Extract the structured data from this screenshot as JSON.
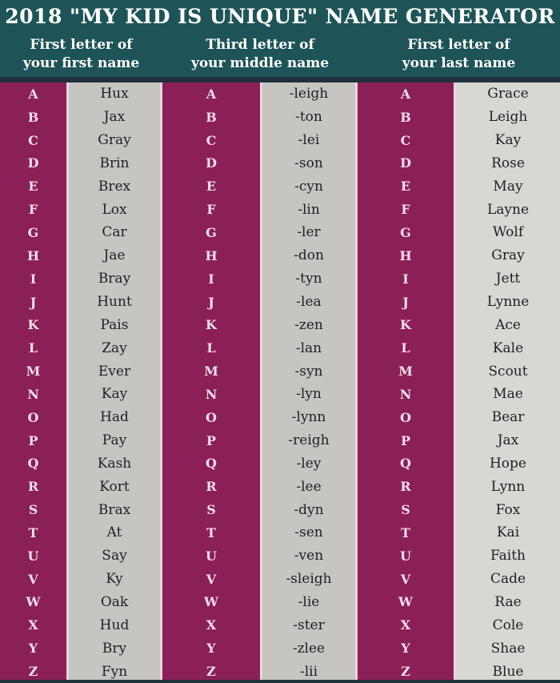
{
  "chart_data": {
    "type": "table",
    "title": "2018 \"MY KID IS UNIQUE\" NAME GENERATOR",
    "letters": [
      "A",
      "B",
      "C",
      "D",
      "E",
      "F",
      "G",
      "H",
      "I",
      "J",
      "K",
      "L",
      "M",
      "N",
      "O",
      "P",
      "Q",
      "R",
      "S",
      "T",
      "U",
      "V",
      "W",
      "X",
      "Y",
      "Z"
    ],
    "columns": [
      {
        "header": [
          "First letter of",
          "your first name"
        ],
        "values": [
          "Hux",
          "Jax",
          "Gray",
          "Brin",
          "Brex",
          "Lox",
          "Car",
          "Jae",
          "Bray",
          "Hunt",
          "Pais",
          "Zay",
          "Ever",
          "Kay",
          "Had",
          "Pay",
          "Kash",
          "Kort",
          "Brax",
          "At",
          "Say",
          "Ky",
          "Oak",
          "Hud",
          "Bry",
          "Fyn"
        ]
      },
      {
        "header": [
          "Third letter of",
          "your middle name"
        ],
        "values": [
          "-leigh",
          "-ton",
          "-lei",
          "-son",
          "-cyn",
          "-lin",
          "-ler",
          "-don",
          "-tyn",
          "-lea",
          "-zen",
          "-lan",
          "-syn",
          "-lyn",
          "-lynn",
          "-reigh",
          "-ley",
          "-lee",
          "-dyn",
          "-sen",
          "-ven",
          "-sleigh",
          "-lie",
          "-ster",
          "-zlee",
          "-lii"
        ]
      },
      {
        "header": [
          "First letter of",
          "your last name"
        ],
        "values": [
          "Grace",
          "Leigh",
          "Kay",
          "Rose",
          "May",
          "Layne",
          "Wolf",
          "Gray",
          "Jett",
          "Lynne",
          "Ace",
          "Kale",
          "Scout",
          "Mae",
          "Bear",
          "Jax",
          "Hope",
          "Lynn",
          "Fox",
          "Kai",
          "Faith",
          "Cade",
          "Rae",
          "Cole",
          "Shae",
          "Blue"
        ]
      }
    ]
  },
  "colors": {
    "header_bg": "#1e5457",
    "divider": "#202f3c",
    "letter_bg": "#8a2057",
    "letter_text": "#f3dce8",
    "value_bg_1": "#c7c5c2",
    "value_bg_3": "#d9d7d3",
    "value_edge": "#e9d6df",
    "value_text": "#211f20",
    "title_text": "#ffffff",
    "bottom_strip": "#20343c"
  }
}
